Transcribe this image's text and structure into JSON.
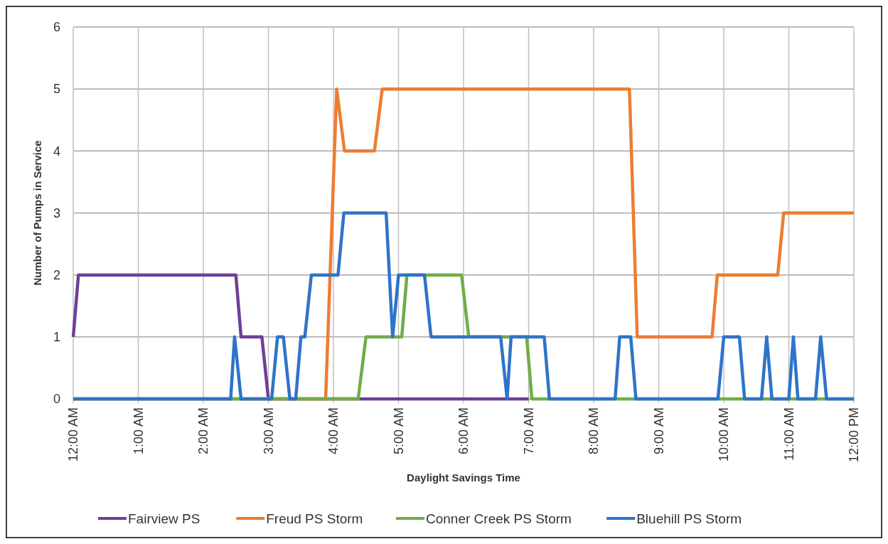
{
  "chart_data": {
    "type": "line",
    "xlabel": "Daylight Savings Time",
    "ylabel": "Number of Pumps in Service",
    "xlim": [
      0,
      12
    ],
    "xticks": [
      {
        "value": 0,
        "label": "12:00 AM"
      },
      {
        "value": 1,
        "label": "1:00 AM"
      },
      {
        "value": 2,
        "label": "2:00 AM"
      },
      {
        "value": 3,
        "label": "3:00 AM"
      },
      {
        "value": 4,
        "label": "4:00 AM"
      },
      {
        "value": 5,
        "label": "5:00 AM"
      },
      {
        "value": 6,
        "label": "6:00 AM"
      },
      {
        "value": 7,
        "label": "7:00 AM"
      },
      {
        "value": 8,
        "label": "8:00 AM"
      },
      {
        "value": 9,
        "label": "9:00 AM"
      },
      {
        "value": 10,
        "label": "10:00 AM"
      },
      {
        "value": 11,
        "label": "11:00 AM"
      },
      {
        "value": 12,
        "label": "12:00 PM"
      }
    ],
    "ylim": [
      0,
      6
    ],
    "yticks": [
      0,
      1,
      2,
      3,
      4,
      5,
      6
    ],
    "grid": true,
    "legend": "bottom",
    "marker": "none",
    "line_style": "solid",
    "series": [
      {
        "name": "Fairview PS",
        "color": "#6f3f96",
        "x": [
          0,
          0.08,
          2.5,
          2.58,
          2.9,
          3.0,
          7.0
        ],
        "values": [
          1,
          2,
          2,
          1,
          1,
          0,
          0
        ]
      },
      {
        "name": "Freud PS Storm",
        "color": "#ed7d31",
        "x": [
          0,
          3.88,
          4.05,
          4.17,
          4.63,
          4.75,
          8.55,
          8.67,
          9.82,
          9.9,
          10.83,
          10.92,
          12
        ],
        "values": [
          0,
          0,
          5,
          4,
          4,
          5,
          5,
          1,
          1,
          2,
          2,
          3,
          3
        ]
      },
      {
        "name": "Conner Creek PS Storm",
        "color": "#70ad47",
        "x": [
          0,
          4.38,
          4.5,
          5.05,
          5.13,
          5.97,
          6.08,
          6.97,
          7.05,
          12
        ],
        "values": [
          0,
          0,
          1,
          1,
          2,
          2,
          1,
          1,
          0,
          0
        ]
      },
      {
        "name": "Bluehill PS Storm",
        "color": "#2e74c8",
        "x": [
          0,
          2.42,
          2.48,
          2.58,
          3.05,
          3.14,
          3.23,
          3.33,
          3.42,
          3.5,
          3.56,
          3.66,
          4.07,
          4.16,
          4.81,
          4.91,
          5.0,
          5.4,
          5.5,
          6.57,
          6.67,
          6.73,
          7.24,
          7.32,
          8.33,
          8.4,
          8.57,
          8.65,
          9.91,
          10.0,
          10.24,
          10.32,
          10.58,
          10.66,
          10.74,
          11.0,
          11.07,
          11.14,
          11.41,
          11.49,
          11.58,
          12
        ],
        "values": [
          0,
          0,
          1,
          0,
          0,
          1,
          1,
          0,
          0,
          1,
          1,
          2,
          2,
          3,
          3,
          1,
          2,
          2,
          1,
          1,
          0,
          1,
          1,
          0,
          0,
          1,
          1,
          0,
          0,
          1,
          1,
          0,
          0,
          1,
          0,
          0,
          1,
          0,
          0,
          1,
          0,
          0
        ]
      }
    ]
  }
}
